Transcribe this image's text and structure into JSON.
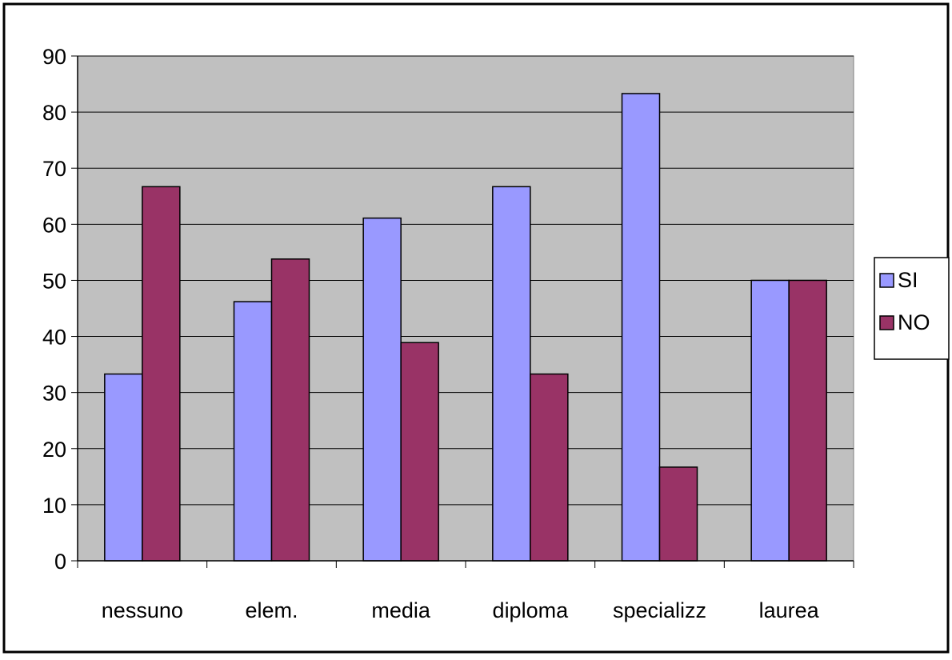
{
  "chart_data": {
    "type": "bar",
    "title": "",
    "xlabel": "",
    "ylabel": "",
    "categories": [
      "nessuno",
      "elem.",
      "media",
      "diploma",
      "specializz",
      "laurea"
    ],
    "series": [
      {
        "name": "SI",
        "values": [
          33.3,
          46.2,
          61.1,
          66.7,
          83.3,
          50.0
        ],
        "color": "#9999ff"
      },
      {
        "name": "NO",
        "values": [
          66.7,
          53.8,
          38.9,
          33.3,
          16.7,
          50.0
        ],
        "color": "#993366"
      }
    ],
    "ylim": [
      0,
      90
    ],
    "yticks": [
      "0",
      "10",
      "20",
      "30",
      "40",
      "50",
      "60",
      "70",
      "80",
      "90"
    ],
    "grid": true,
    "legend_position": "right",
    "plot_background": "#c0c0c0"
  }
}
